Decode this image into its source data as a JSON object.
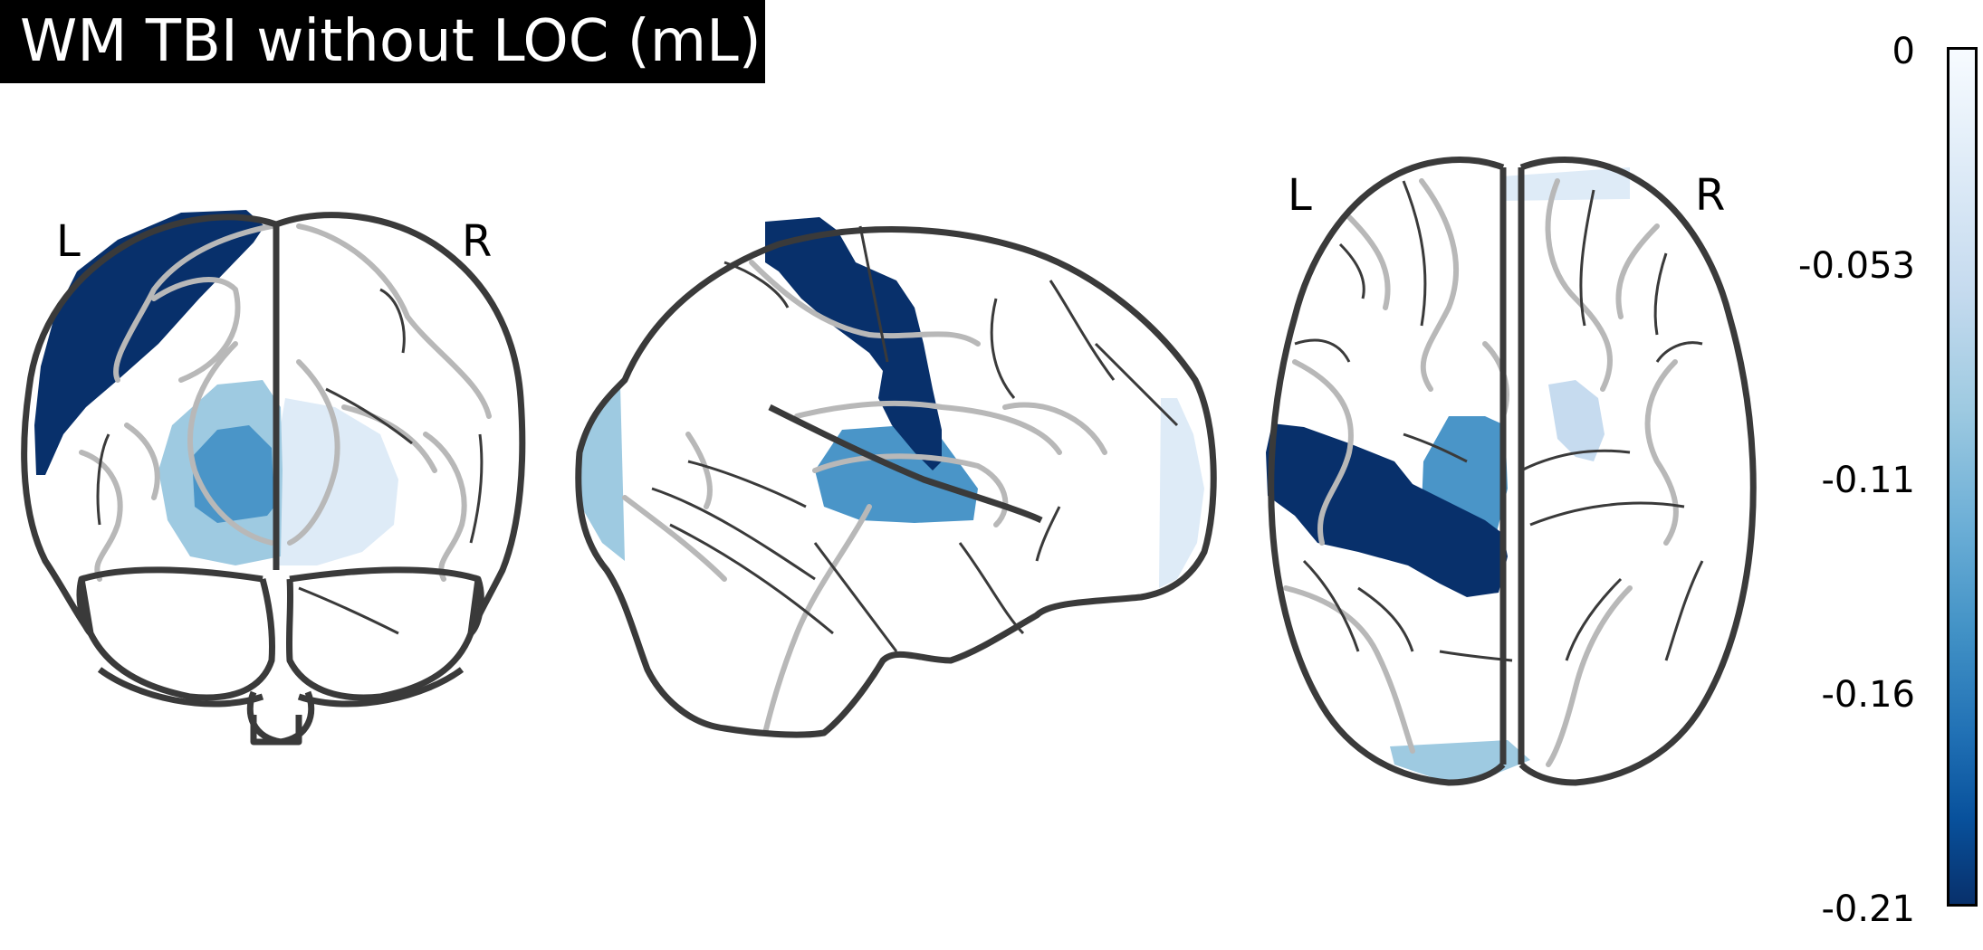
{
  "title": "WM TBI without LOC (mL)",
  "views": {
    "coronal": {
      "left_label": "L",
      "right_label": "R"
    },
    "axial": {
      "left_label": "L",
      "right_label": "R"
    }
  },
  "colorbar": {
    "colormap": "Blues_r",
    "min": -0.21,
    "max": 0,
    "ticks": [
      "0",
      "-0.053",
      "-0.11",
      "-0.16",
      "-0.21"
    ]
  },
  "colors": {
    "darkest": "#08306b",
    "strong": "#2171b5",
    "medium": "#4a95c8",
    "light": "#9ecae1",
    "pale": "#c6dbef",
    "faint": "#deebf7",
    "outline": "#3a3a3a",
    "sulci": "#b8b8b8"
  }
}
